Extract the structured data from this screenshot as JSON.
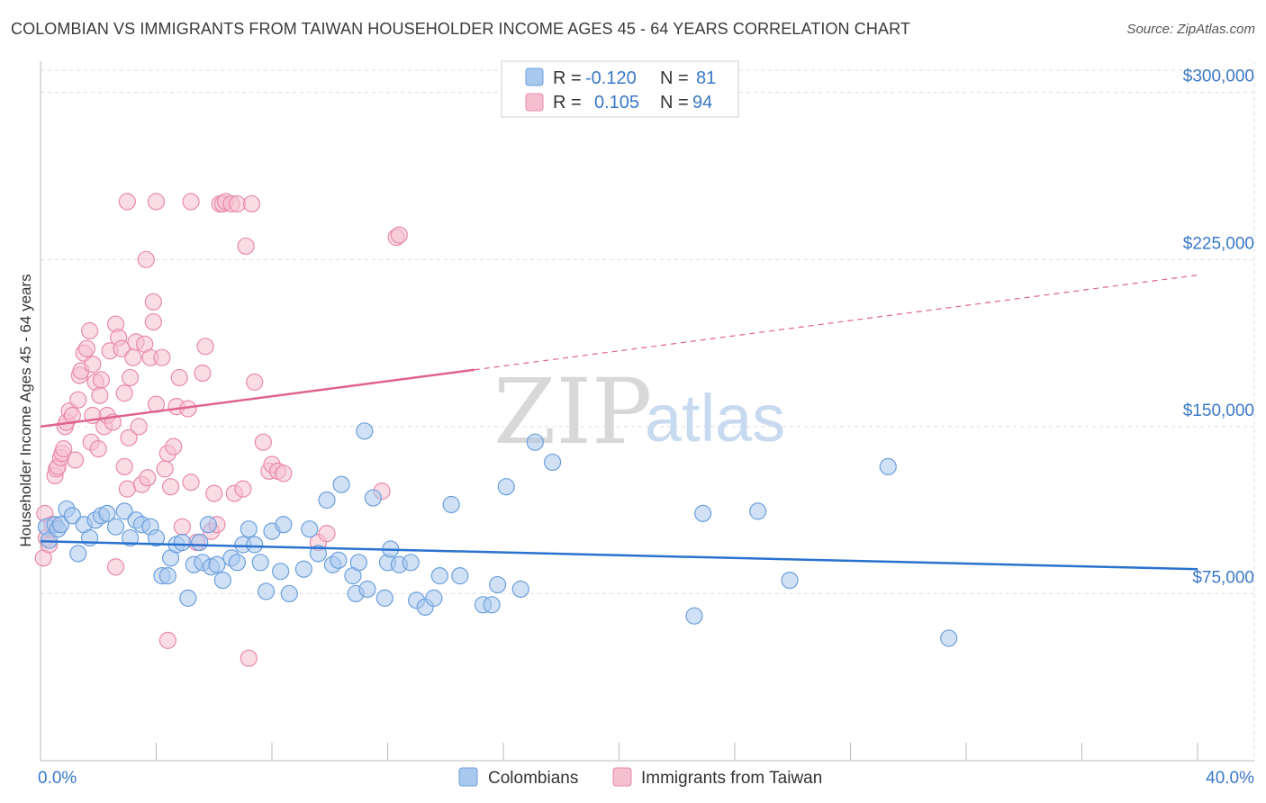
{
  "title": "COLOMBIAN VS IMMIGRANTS FROM TAIWAN HOUSEHOLDER INCOME AGES 45 - 64 YEARS CORRELATION CHART",
  "source": "Source: ZipAtlas.com",
  "watermark": {
    "zip": "ZIP",
    "atlas": "atlas"
  },
  "colors": {
    "blue_fill": "#a9c8ee",
    "blue_stroke": "#6c9fdb",
    "blue_line": "#2a72d0",
    "pink_fill": "#f5bfd0",
    "pink_stroke": "#e88aaa",
    "pink_line": "#e0628e",
    "grid": "#dddddd",
    "axis": "#bbbbbb",
    "tick_text": "#3a78c6"
  },
  "legend": {
    "row1": {
      "r_label": "R =",
      "r_value": "-0.120",
      "n_label": "N =",
      "n_value": "81"
    },
    "row2": {
      "r_label": "R =",
      "r_value": "0.105",
      "n_label": "N =",
      "n_value": "94"
    }
  },
  "chart_data": {
    "type": "scatter",
    "title": "COLOMBIAN VS IMMIGRANTS FROM TAIWAN HOUSEHOLDER INCOME AGES 45 - 64 YEARS CORRELATION CHART",
    "xlabel": "",
    "ylabel": "Householder Income Ages 45 - 64 years",
    "xlim": [
      0,
      40
    ],
    "ylim": [
      0,
      310000
    ],
    "x_tick_labels": [
      "0.0%",
      "40.0%"
    ],
    "y_ticks": [
      75000,
      150000,
      225000,
      300000
    ],
    "y_tick_labels": [
      "$75,000",
      "$150,000",
      "$225,000",
      "$300,000"
    ],
    "legend_position": "top-center",
    "series": [
      {
        "name": "Colombians",
        "color": "#6c9fdb",
        "r": -0.12,
        "n": 81,
        "trend": {
          "x0": 0,
          "y0": 98500,
          "x1": 40,
          "y1": 86000,
          "dashed_from": null
        },
        "points": [
          [
            0.2,
            105000
          ],
          [
            0.3,
            99000
          ],
          [
            0.5,
            106000
          ],
          [
            0.6,
            104000
          ],
          [
            0.7,
            106000
          ],
          [
            0.9,
            113000
          ],
          [
            1.1,
            110000
          ],
          [
            1.3,
            93000
          ],
          [
            1.5,
            106000
          ],
          [
            1.7,
            100000
          ],
          [
            1.9,
            108000
          ],
          [
            2.1,
            110000
          ],
          [
            2.3,
            111000
          ],
          [
            2.6,
            105000
          ],
          [
            2.9,
            112000
          ],
          [
            3.1,
            100000
          ],
          [
            3.3,
            108000
          ],
          [
            3.5,
            106000
          ],
          [
            3.8,
            105000
          ],
          [
            4.0,
            100000
          ],
          [
            4.2,
            83000
          ],
          [
            4.4,
            83000
          ],
          [
            4.5,
            91000
          ],
          [
            4.7,
            97000
          ],
          [
            4.9,
            98000
          ],
          [
            5.1,
            73000
          ],
          [
            5.3,
            88000
          ],
          [
            5.5,
            98000
          ],
          [
            5.6,
            89000
          ],
          [
            5.8,
            106000
          ],
          [
            5.9,
            87000
          ],
          [
            6.1,
            88000
          ],
          [
            6.3,
            81000
          ],
          [
            6.6,
            91000
          ],
          [
            6.8,
            89000
          ],
          [
            7.0,
            97000
          ],
          [
            7.2,
            104000
          ],
          [
            7.4,
            97000
          ],
          [
            7.6,
            89000
          ],
          [
            7.8,
            76000
          ],
          [
            8.0,
            103000
          ],
          [
            8.3,
            85000
          ],
          [
            8.4,
            106000
          ],
          [
            8.6,
            75000
          ],
          [
            9.1,
            86000
          ],
          [
            9.3,
            104000
          ],
          [
            9.6,
            93000
          ],
          [
            9.9,
            117000
          ],
          [
            10.1,
            88000
          ],
          [
            10.3,
            90000
          ],
          [
            10.4,
            124000
          ],
          [
            10.8,
            83000
          ],
          [
            10.9,
            75000
          ],
          [
            11.0,
            89000
          ],
          [
            11.3,
            77000
          ],
          [
            11.5,
            118000
          ],
          [
            11.9,
            73000
          ],
          [
            12.0,
            89000
          ],
          [
            12.1,
            95000
          ],
          [
            12.4,
            88000
          ],
          [
            12.8,
            89000
          ],
          [
            13.0,
            72000
          ],
          [
            13.3,
            69000
          ],
          [
            13.6,
            73000
          ],
          [
            13.8,
            83000
          ],
          [
            14.2,
            115000
          ],
          [
            14.5,
            83000
          ],
          [
            15.3,
            70000
          ],
          [
            15.6,
            70000
          ],
          [
            11.2,
            148000
          ],
          [
            15.8,
            79000
          ],
          [
            16.6,
            77000
          ],
          [
            16.1,
            123000
          ],
          [
            17.1,
            143000
          ],
          [
            17.7,
            134000
          ],
          [
            22.6,
            65000
          ],
          [
            22.9,
            111000
          ],
          [
            24.8,
            112000
          ],
          [
            25.9,
            81000
          ],
          [
            29.3,
            132000
          ],
          [
            31.4,
            55000
          ]
        ]
      },
      {
        "name": "Immigrants from Taiwan",
        "color": "#e88aaa",
        "r": 0.105,
        "n": 94,
        "trend": {
          "x0": 0,
          "y0": 150000,
          "x1": 40,
          "y1": 218000,
          "dashed_from": 15
        },
        "points": [
          [
            0.1,
            91000
          ],
          [
            0.15,
            111000
          ],
          [
            0.2,
            100000
          ],
          [
            0.3,
            97000
          ],
          [
            0.4,
            106000
          ],
          [
            0.5,
            128000
          ],
          [
            0.55,
            131000
          ],
          [
            0.6,
            132000
          ],
          [
            0.7,
            136000
          ],
          [
            0.75,
            138000
          ],
          [
            0.8,
            140000
          ],
          [
            0.85,
            150000
          ],
          [
            0.9,
            152000
          ],
          [
            1.0,
            157000
          ],
          [
            1.1,
            155000
          ],
          [
            1.2,
            135000
          ],
          [
            1.3,
            162000
          ],
          [
            1.35,
            173000
          ],
          [
            1.4,
            175000
          ],
          [
            1.5,
            183000
          ],
          [
            1.6,
            185000
          ],
          [
            1.7,
            193000
          ],
          [
            1.75,
            143000
          ],
          [
            1.8,
            178000
          ],
          [
            1.9,
            170000
          ],
          [
            2.0,
            140000
          ],
          [
            2.05,
            164000
          ],
          [
            2.1,
            171000
          ],
          [
            2.2,
            150000
          ],
          [
            2.3,
            155000
          ],
          [
            2.4,
            184000
          ],
          [
            2.5,
            152000
          ],
          [
            2.6,
            196000
          ],
          [
            2.7,
            190000
          ],
          [
            2.8,
            185000
          ],
          [
            2.9,
            132000
          ],
          [
            3.0,
            122000
          ],
          [
            3.05,
            145000
          ],
          [
            3.1,
            172000
          ],
          [
            3.2,
            181000
          ],
          [
            3.3,
            188000
          ],
          [
            3.4,
            150000
          ],
          [
            3.5,
            124000
          ],
          [
            3.6,
            187000
          ],
          [
            3.65,
            225000
          ],
          [
            3.7,
            127000
          ],
          [
            3.8,
            181000
          ],
          [
            3.9,
            197000
          ],
          [
            4.0,
            160000
          ],
          [
            4.2,
            181000
          ],
          [
            4.3,
            131000
          ],
          [
            4.4,
            138000
          ],
          [
            4.5,
            123000
          ],
          [
            4.6,
            141000
          ],
          [
            4.7,
            159000
          ],
          [
            4.8,
            172000
          ],
          [
            4.9,
            105000
          ],
          [
            5.1,
            158000
          ],
          [
            5.2,
            125000
          ],
          [
            5.4,
            98000
          ],
          [
            5.6,
            174000
          ],
          [
            5.7,
            186000
          ],
          [
            5.9,
            103000
          ],
          [
            6.0,
            120000
          ],
          [
            6.1,
            106000
          ],
          [
            6.2,
            250000
          ],
          [
            6.3,
            250000
          ],
          [
            6.4,
            251000
          ],
          [
            6.6,
            250000
          ],
          [
            6.7,
            120000
          ],
          [
            6.8,
            250000
          ],
          [
            7.0,
            122000
          ],
          [
            7.1,
            231000
          ],
          [
            7.3,
            250000
          ],
          [
            7.4,
            170000
          ],
          [
            7.7,
            143000
          ],
          [
            7.9,
            130000
          ],
          [
            8.0,
            133000
          ],
          [
            8.2,
            130000
          ],
          [
            8.4,
            129000
          ],
          [
            9.6,
            98000
          ],
          [
            9.9,
            102000
          ],
          [
            11.8,
            121000
          ],
          [
            12.3,
            235000
          ],
          [
            12.4,
            236000
          ],
          [
            3.0,
            251000
          ],
          [
            4.0,
            251000
          ],
          [
            5.2,
            251000
          ],
          [
            2.6,
            87000
          ],
          [
            3.9,
            206000
          ],
          [
            4.4,
            54000
          ],
          [
            7.2,
            46000
          ],
          [
            1.8,
            155000
          ],
          [
            2.9,
            165000
          ]
        ]
      }
    ]
  }
}
